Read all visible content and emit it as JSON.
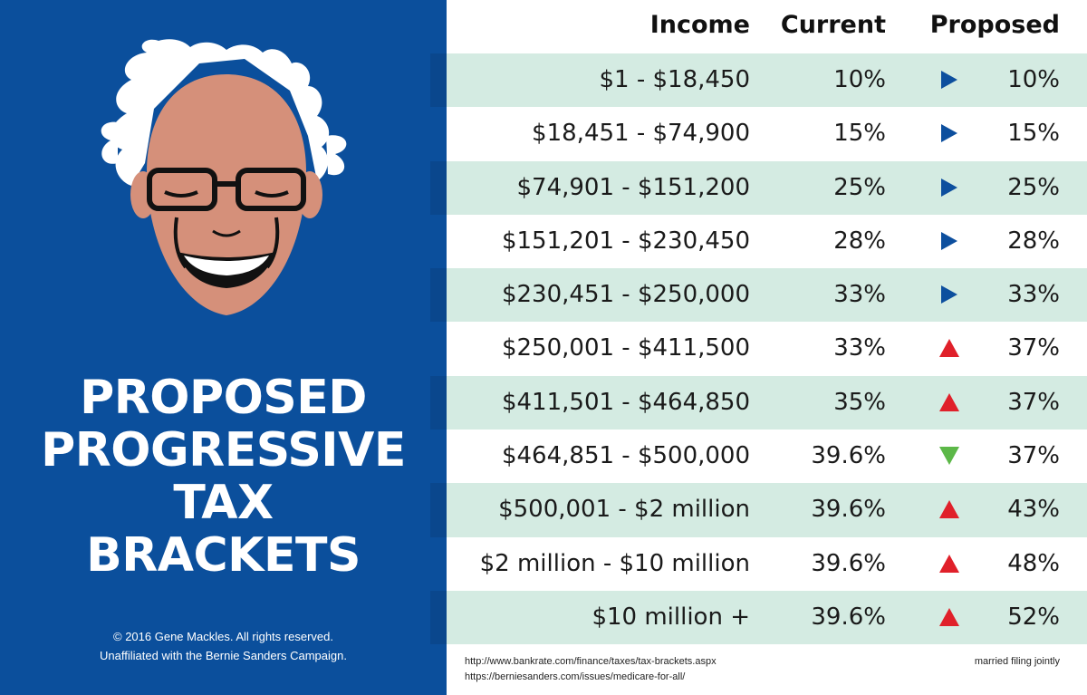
{
  "poster": {
    "title_lines": [
      "PROPOSED",
      "PROGRESSIVE",
      "TAX",
      "BRACKETS"
    ],
    "credit_line1": "© 2016 Gene Mackles. All rights reserved.",
    "credit_line2": "Unaffiliated with the Bernie Sanders Campaign.",
    "panel_color": "#0b4f9c"
  },
  "chart_data": {
    "type": "table",
    "columns": [
      "Income",
      "Current",
      "Proposed"
    ],
    "rows": [
      {
        "income": "$1 - $18,450",
        "current": "10%",
        "change": "same",
        "proposed": "10%"
      },
      {
        "income": "$18,451 - $74,900",
        "current": "15%",
        "change": "same",
        "proposed": "15%"
      },
      {
        "income": "$74,901 - $151,200",
        "current": "25%",
        "change": "same",
        "proposed": "25%"
      },
      {
        "income": "$151,201 - $230,450",
        "current": "28%",
        "change": "same",
        "proposed": "28%"
      },
      {
        "income": "$230,451 - $250,000",
        "current": "33%",
        "change": "same",
        "proposed": "33%"
      },
      {
        "income": "$250,001 - $411,500",
        "current": "33%",
        "change": "up",
        "proposed": "37%"
      },
      {
        "income": "$411,501 - $464,850",
        "current": "35%",
        "change": "up",
        "proposed": "37%"
      },
      {
        "income": "$464,851 - $500,000",
        "current": "39.6%",
        "change": "down",
        "proposed": "37%"
      },
      {
        "income": "$500,001 - $2 million",
        "current": "39.6%",
        "change": "up",
        "proposed": "43%"
      },
      {
        "income": "$2 million - $10 million",
        "current": "39.6%",
        "change": "up",
        "proposed": "48%"
      },
      {
        "income": "$10 million +",
        "current": "39.6%",
        "change": "up",
        "proposed": "52%"
      }
    ],
    "indicator_colors": {
      "same": "#0d4f9e",
      "up": "#e0202a",
      "down": "#5cb848"
    },
    "sources": [
      "http://www.bankrate.com/finance/taxes/tax-brackets.aspx",
      "https://berniesanders.com/issues/medicare-for-all/"
    ],
    "note": "married filing jointly"
  }
}
